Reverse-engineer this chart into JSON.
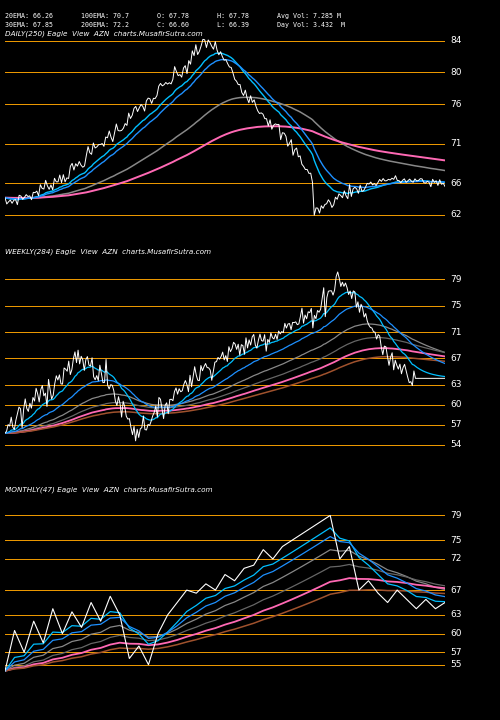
{
  "background_color": "#000000",
  "text_color": "#ffffff",
  "orange_line_color": "#FFA500",
  "panel1": {
    "label": "DAILY(250) Eagle  View  AZN  charts.MusafirSutra.com",
    "info_line1": "20EMA: 66.26       100EMA: 70.7       O: 67.78       H: 67.78       Avg Vol: 7.285 M",
    "info_line2": "30EMA: 67.85       200EMA: 72.2       C: 66.60       L: 66.39       Day Vol: 3.432  M",
    "hlines": [
      84,
      80,
      76,
      71,
      66,
      62
    ],
    "ylim": [
      60.5,
      85.5
    ],
    "n": 250
  },
  "panel2": {
    "label": "WEEKLY(284) Eagle  View  AZN  charts.MusafirSutra.com",
    "hlines": [
      79,
      75,
      71,
      67,
      63,
      60,
      57,
      54
    ],
    "ylim": [
      51,
      82
    ],
    "n": 284
  },
  "panel3": {
    "label": "MONTHLY(47) Eagle  View  AZN  charts.MusafirSutra.com",
    "hlines": [
      79,
      75,
      72,
      67,
      63,
      60,
      57,
      55
    ],
    "ylim": [
      49,
      82
    ],
    "n": 47
  },
  "ema_colors": {
    "fast1": "#00BFFF",
    "fast2": "#1E90FF",
    "mid1": "#888888",
    "mid2": "#666666",
    "slow1": "#FF69B4",
    "slow2": "#A0522D"
  }
}
